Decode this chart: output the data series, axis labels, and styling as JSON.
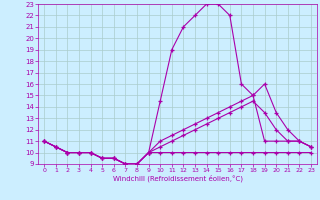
{
  "title": "",
  "xlabel": "Windchill (Refroidissement éolien,°C)",
  "bg_color": "#cceeff",
  "grid_color": "#aacccc",
  "line_color": "#aa00aa",
  "xlim": [
    -0.5,
    23.5
  ],
  "ylim": [
    9,
    23
  ],
  "xticks": [
    0,
    1,
    2,
    3,
    4,
    5,
    6,
    7,
    8,
    9,
    10,
    11,
    12,
    13,
    14,
    15,
    16,
    17,
    18,
    19,
    20,
    21,
    22,
    23
  ],
  "yticks": [
    9,
    10,
    11,
    12,
    13,
    14,
    15,
    16,
    17,
    18,
    19,
    20,
    21,
    22,
    23
  ],
  "line1_x": [
    0,
    1,
    2,
    3,
    4,
    5,
    6,
    7,
    8,
    9,
    10,
    11,
    12,
    13,
    14,
    15,
    16,
    17,
    18,
    19,
    20,
    21,
    22,
    23
  ],
  "line1_y": [
    11,
    10.5,
    10,
    10,
    10,
    9.5,
    9.5,
    9,
    9,
    10,
    10,
    10,
    10,
    10,
    10,
    10,
    10,
    10,
    10,
    10,
    10,
    10,
    10,
    10
  ],
  "line2_x": [
    0,
    1,
    2,
    3,
    4,
    5,
    6,
    7,
    8,
    9,
    10,
    11,
    12,
    13,
    14,
    15,
    16,
    17,
    18,
    19,
    20,
    21,
    22,
    23
  ],
  "line2_y": [
    11,
    10.5,
    10,
    10,
    10,
    9.5,
    9.5,
    9,
    9,
    10,
    14.5,
    19,
    21,
    22,
    23,
    23,
    22,
    16,
    15,
    11,
    11,
    11,
    11,
    10.5
  ],
  "line3_x": [
    0,
    1,
    2,
    3,
    4,
    5,
    6,
    7,
    8,
    9,
    10,
    11,
    12,
    13,
    14,
    15,
    16,
    17,
    18,
    19,
    20,
    21,
    22,
    23
  ],
  "line3_y": [
    11,
    10.5,
    10,
    10,
    10,
    9.5,
    9.5,
    9,
    9,
    10,
    11,
    11.5,
    12,
    12.5,
    13,
    13.5,
    14,
    14.5,
    15,
    16,
    13.5,
    12,
    11,
    10.5
  ],
  "line4_x": [
    0,
    1,
    2,
    3,
    4,
    5,
    6,
    7,
    8,
    9,
    10,
    11,
    12,
    13,
    14,
    15,
    16,
    17,
    18,
    19,
    20,
    21,
    22,
    23
  ],
  "line4_y": [
    11,
    10.5,
    10,
    10,
    10,
    9.5,
    9.5,
    9,
    9,
    10,
    10.5,
    11,
    11.5,
    12,
    12.5,
    13,
    13.5,
    14,
    14.5,
    13.5,
    12,
    11,
    11,
    10.5
  ]
}
